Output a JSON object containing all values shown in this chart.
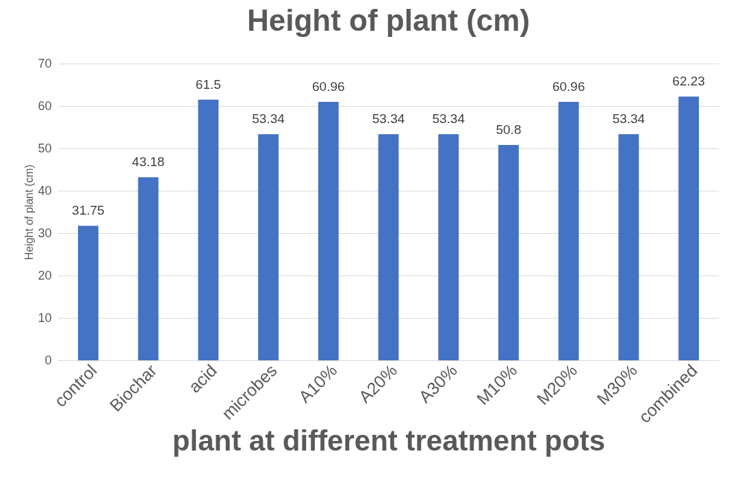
{
  "chart_data": {
    "type": "bar",
    "title": "Height of plant (cm)",
    "xlabel": "plant at different treatment pots",
    "ylabel": "Height of plant (cm)",
    "categories": [
      "control",
      "Biochar",
      "acid",
      "microbes",
      "A10%",
      "A20%",
      "A30%",
      "M10%",
      "M20%",
      "M30%",
      "combined"
    ],
    "values": [
      31.75,
      43.18,
      61.5,
      53.34,
      60.96,
      53.34,
      53.34,
      50.8,
      60.96,
      53.34,
      62.23
    ],
    "color": "#4472c4",
    "ylim": [
      0,
      70
    ],
    "yticks": [
      0,
      10,
      20,
      30,
      40,
      50,
      60,
      70
    ],
    "grid": "y",
    "data_labels": true
  }
}
